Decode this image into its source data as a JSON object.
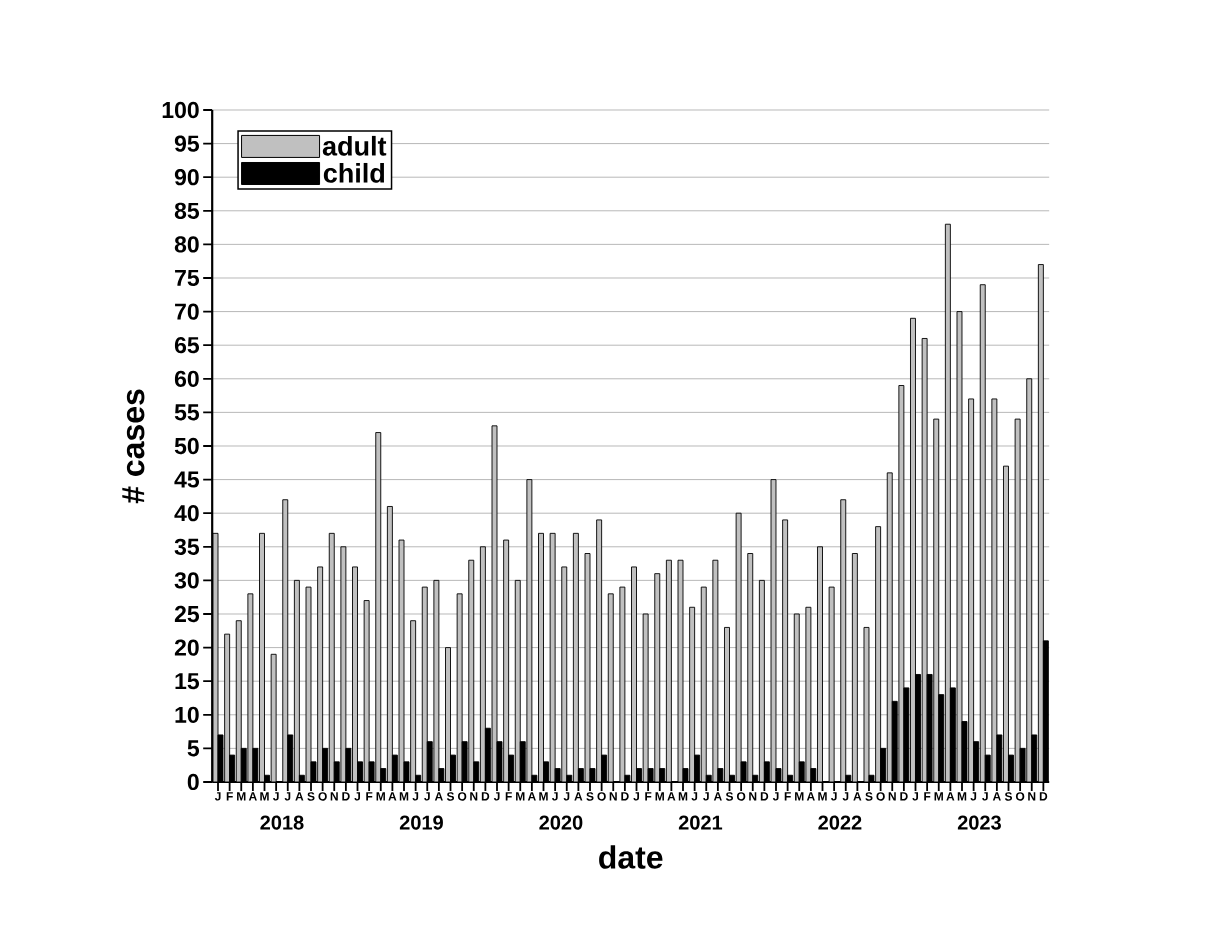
{
  "chart_data": {
    "type": "bar",
    "xlabel": "date",
    "ylabel": "# cases",
    "categories": [
      "J",
      "F",
      "M",
      "A",
      "M",
      "J",
      "J",
      "A",
      "S",
      "O",
      "N",
      "D",
      "J",
      "F",
      "M",
      "A",
      "M",
      "J",
      "J",
      "A",
      "S",
      "O",
      "N",
      "D",
      "J",
      "F",
      "M",
      "A",
      "M",
      "J",
      "J",
      "A",
      "S",
      "O",
      "N",
      "D",
      "J",
      "F",
      "M",
      "A",
      "M",
      "J",
      "J",
      "A",
      "S",
      "O",
      "N",
      "D",
      "J",
      "F",
      "M",
      "A",
      "M",
      "J",
      "J",
      "A",
      "S",
      "O",
      "N",
      "D",
      "J",
      "F",
      "M",
      "A",
      "M",
      "J",
      "J",
      "A",
      "S",
      "O",
      "N",
      "D"
    ],
    "series": [
      {
        "name": "adult",
        "color": "#c0c0c0",
        "values": [
          37,
          22,
          24,
          28,
          37,
          19,
          42,
          30,
          29,
          32,
          37,
          35,
          32,
          27,
          52,
          41,
          36,
          24,
          29,
          30,
          20,
          28,
          33,
          35,
          53,
          36,
          30,
          45,
          37,
          37,
          32,
          37,
          34,
          39,
          28,
          29,
          32,
          25,
          31,
          33,
          33,
          26,
          29,
          33,
          23,
          40,
          34,
          30,
          45,
          39,
          25,
          26,
          35,
          29,
          42,
          34,
          23,
          38,
          46,
          59,
          69,
          66,
          54,
          83,
          70,
          57,
          74,
          57,
          47,
          54,
          60,
          77
        ]
      },
      {
        "name": "child",
        "color": "#000000",
        "values": [
          7,
          4,
          5,
          5,
          1,
          0,
          7,
          1,
          3,
          5,
          3,
          5,
          3,
          3,
          2,
          4,
          3,
          1,
          6,
          2,
          4,
          6,
          3,
          8,
          6,
          4,
          6,
          1,
          3,
          2,
          1,
          2,
          2,
          4,
          0,
          1,
          2,
          2,
          2,
          0,
          2,
          4,
          1,
          2,
          1,
          3,
          1,
          3,
          2,
          1,
          3,
          2,
          0,
          0,
          1,
          0,
          1,
          5,
          12,
          14,
          16,
          16,
          13,
          14,
          9,
          6,
          4,
          7,
          4,
          5,
          7,
          21
        ]
      }
    ],
    "annotations": [
      "2018",
      "2019",
      "2020",
      "2021",
      "2022",
      "2023"
    ],
    "ylim": [
      0,
      100
    ],
    "yticks": [
      0,
      5,
      10,
      15,
      20,
      25,
      30,
      35,
      40,
      45,
      50,
      55,
      60,
      65,
      70,
      75,
      80,
      85,
      90,
      95,
      100
    ],
    "grid": "y",
    "legend": "top left"
  }
}
